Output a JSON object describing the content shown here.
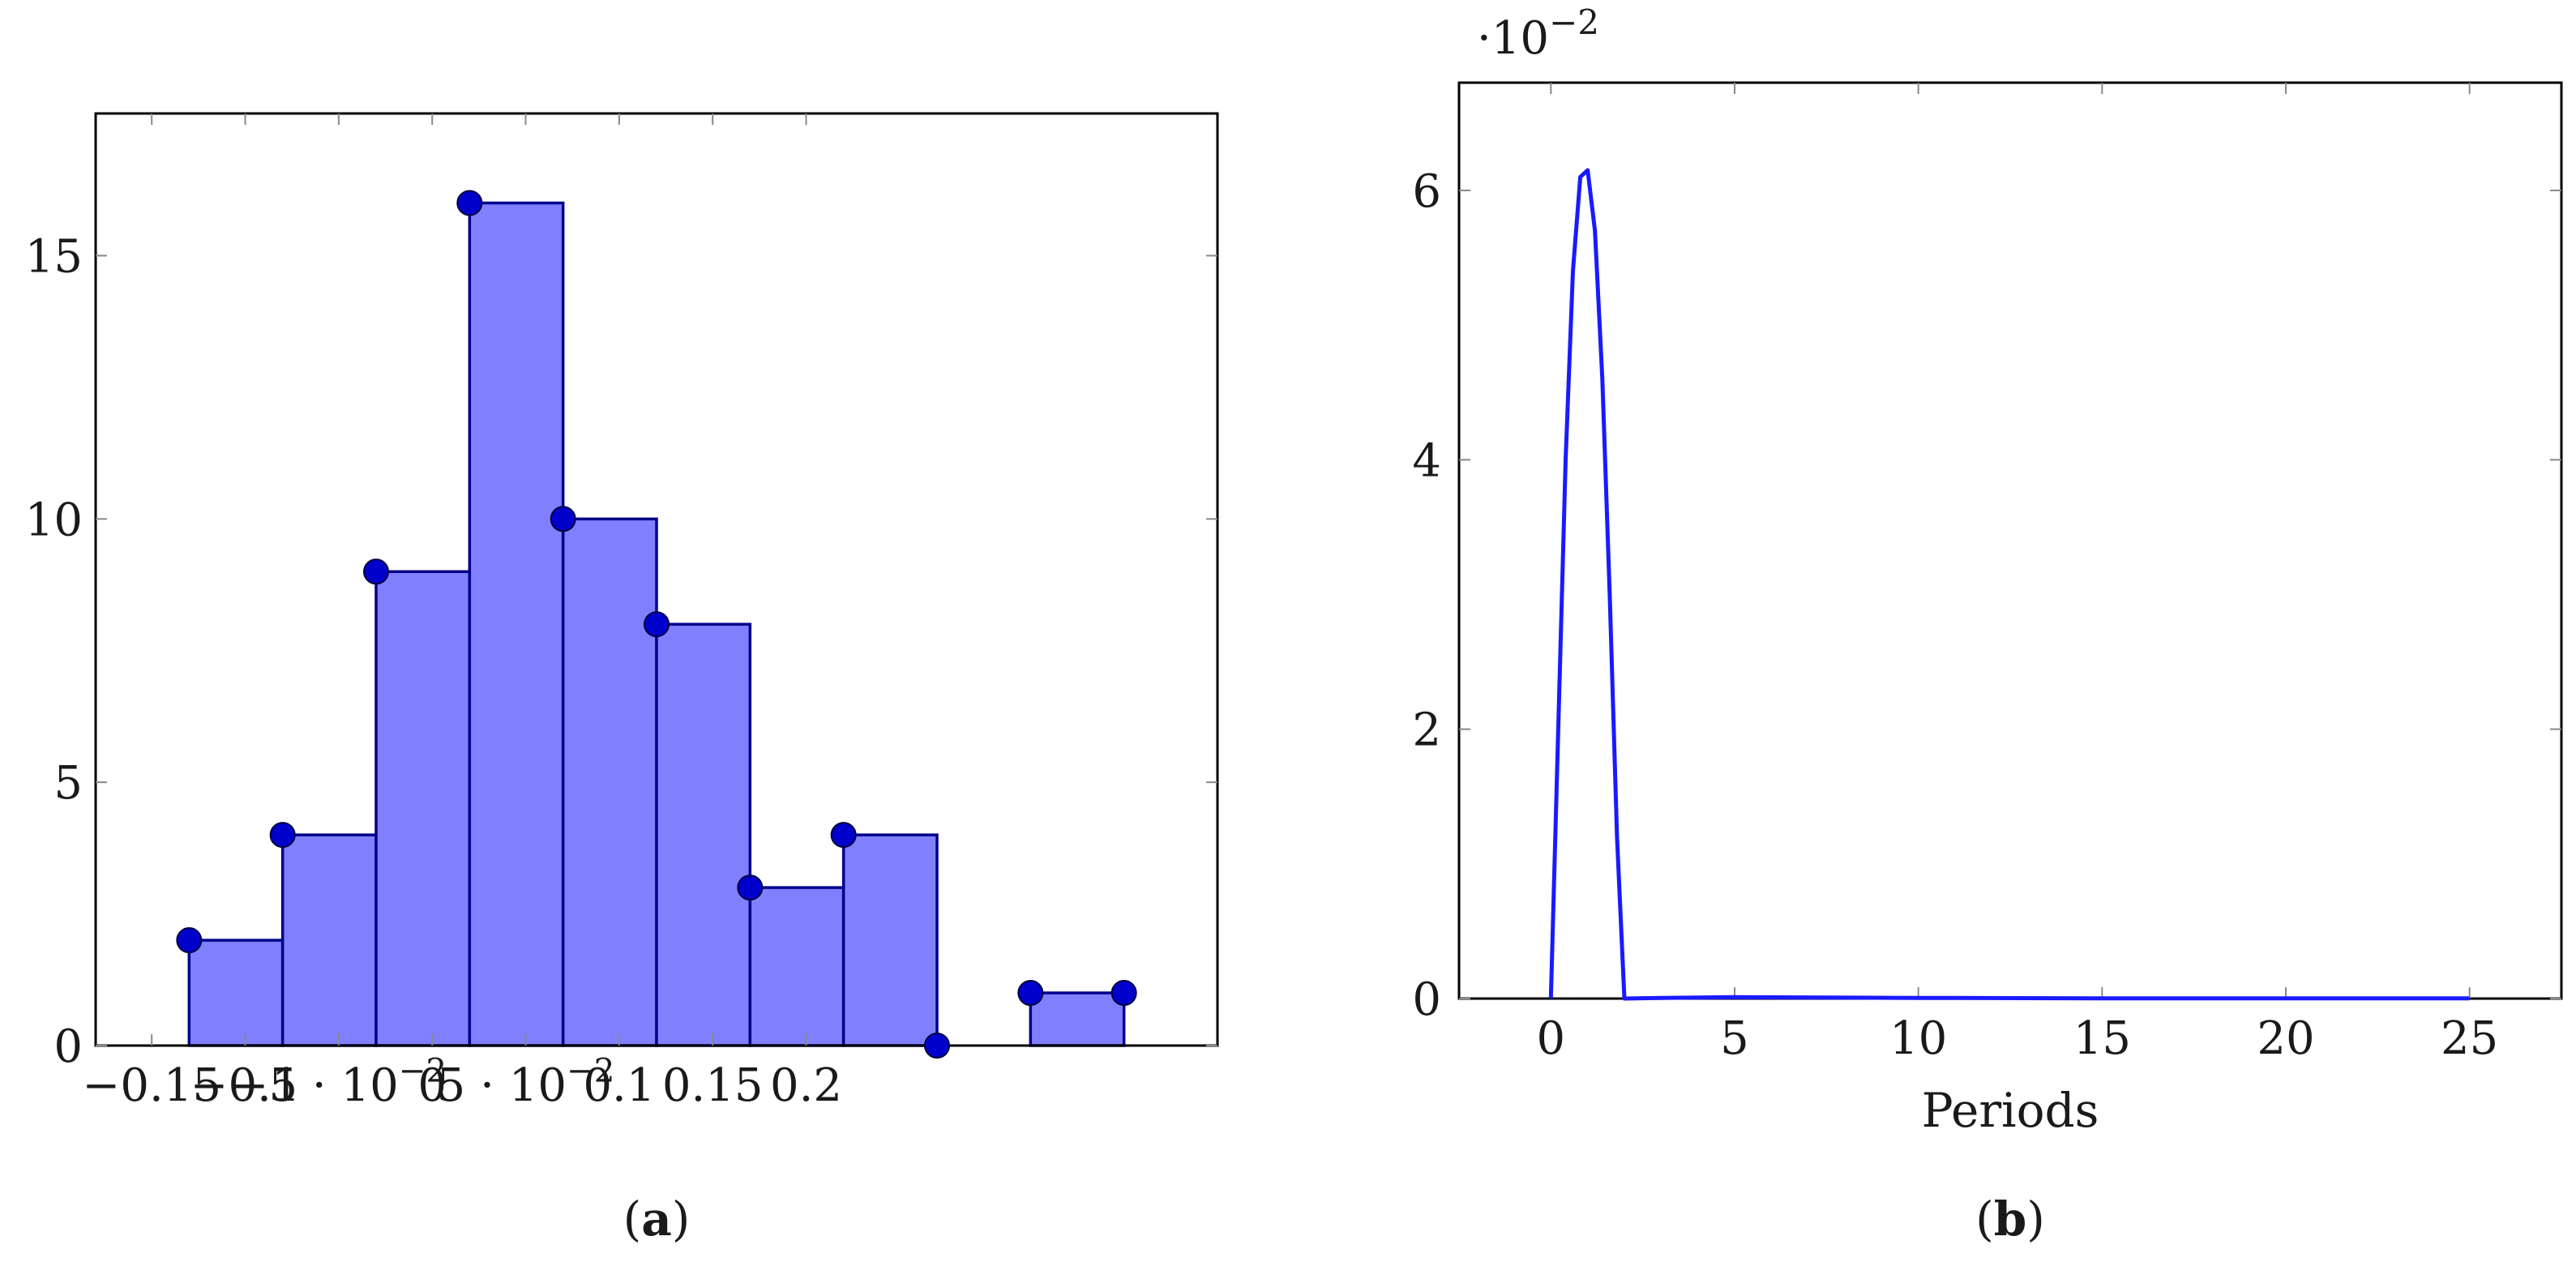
{
  "chart_data": [
    {
      "type": "bar",
      "panel_label": "a",
      "title": "",
      "xlabel": "",
      "ylabel": "",
      "bin_width": 0.05,
      "bins": [
        {
          "x_start": -0.13,
          "count": 2
        },
        {
          "x_start": -0.08,
          "count": 4
        },
        {
          "x_start": -0.03,
          "count": 9
        },
        {
          "x_start": 0.02,
          "count": 16
        },
        {
          "x_start": 0.07,
          "count": 10
        },
        {
          "x_start": 0.12,
          "count": 8
        },
        {
          "x_start": 0.17,
          "count": 3
        },
        {
          "x_start": 0.22,
          "count": 4
        },
        {
          "x_start": 0.27,
          "count": 0
        },
        {
          "x_start": 0.32,
          "count": 1
        }
      ],
      "markers": [
        {
          "x": -0.13,
          "y": 2
        },
        {
          "x": -0.08,
          "y": 4
        },
        {
          "x": -0.03,
          "y": 9
        },
        {
          "x": 0.02,
          "y": 16
        },
        {
          "x": 0.07,
          "y": 10
        },
        {
          "x": 0.12,
          "y": 8
        },
        {
          "x": 0.17,
          "y": 3
        },
        {
          "x": 0.22,
          "y": 4
        },
        {
          "x": 0.27,
          "y": 0
        },
        {
          "x": 0.32,
          "y": 1
        },
        {
          "x": 0.37,
          "y": 1
        }
      ],
      "xlim": [
        -0.18,
        0.42
      ],
      "ylim": [
        0,
        17.7
      ],
      "x_ticks": [
        {
          "value": -0.15,
          "label": "−0.15"
        },
        {
          "value": -0.1,
          "label": "−0.1"
        },
        {
          "value": -0.05,
          "label": "−5 · 10",
          "exp": "−2"
        },
        {
          "value": 0.0,
          "label": "0"
        },
        {
          "value": 0.05,
          "label": "5 · 10",
          "exp": "−2"
        },
        {
          "value": 0.1,
          "label": "0.1"
        },
        {
          "value": 0.15,
          "label": "0.15"
        },
        {
          "value": 0.2,
          "label": "0.2"
        }
      ],
      "y_ticks": [
        {
          "value": 0,
          "label": "0"
        },
        {
          "value": 5,
          "label": "5"
        },
        {
          "value": 10,
          "label": "10"
        },
        {
          "value": 15,
          "label": "15"
        }
      ],
      "colors": {
        "bar_fill": "#8080ff",
        "bar_stroke": "#00008b",
        "marker": "#0000cc"
      },
      "grid": false
    },
    {
      "type": "line",
      "panel_label": "b",
      "title": "",
      "xlabel": "Periods",
      "ylabel": "",
      "y_scale_label": "·10",
      "y_scale_exp": "−2",
      "series": [
        {
          "x": [
            0,
            0.2,
            0.4,
            0.6,
            0.8,
            1.0,
            1.2,
            1.4,
            1.6,
            1.8,
            2.0,
            3,
            5,
            10,
            15,
            20,
            25
          ],
          "y": [
            0,
            2.0,
            4.0,
            5.4,
            6.1,
            6.15,
            5.7,
            4.6,
            3.0,
            1.2,
            0,
            0.005,
            0.01,
            0.005,
            0.002,
            0.001,
            0.001
          ]
        }
      ],
      "xlim": [
        -2.5,
        27.5
      ],
      "ylim": [
        0,
        6.8
      ],
      "x_ticks": [
        {
          "value": 0,
          "label": "0"
        },
        {
          "value": 5,
          "label": "5"
        },
        {
          "value": 10,
          "label": "10"
        },
        {
          "value": 15,
          "label": "15"
        },
        {
          "value": 20,
          "label": "20"
        },
        {
          "value": 25,
          "label": "25"
        }
      ],
      "y_ticks": [
        {
          "value": 0,
          "label": "0"
        },
        {
          "value": 2,
          "label": "2"
        },
        {
          "value": 4,
          "label": "4"
        },
        {
          "value": 6,
          "label": "6"
        }
      ],
      "colors": {
        "line": "#1a1aff"
      },
      "grid": false
    }
  ]
}
